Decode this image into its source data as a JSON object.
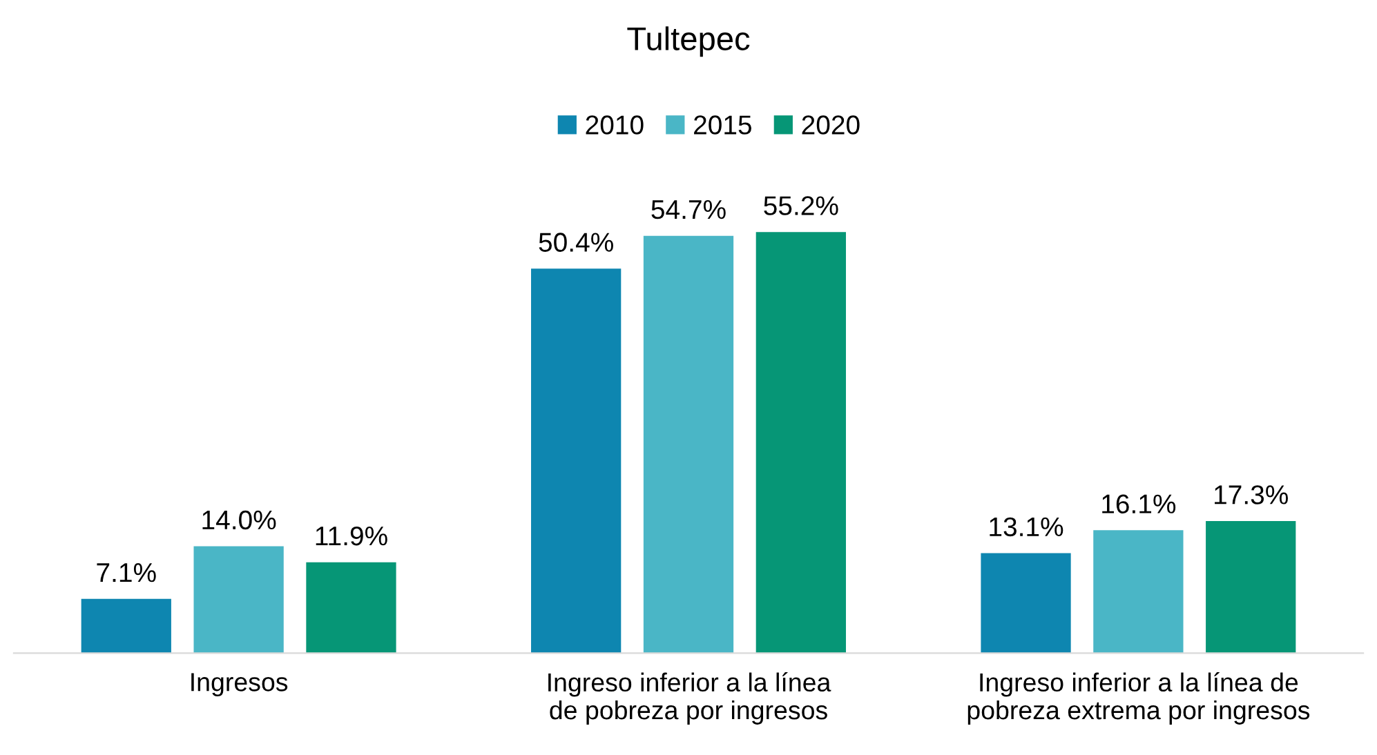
{
  "chart_data": {
    "type": "bar",
    "title": "Tultepec",
    "categories": [
      "Ingresos",
      "Ingreso inferior a la línea de pobreza por ingresos",
      "Ingreso inferior a la línea de pobreza extrema por ingresos"
    ],
    "series": [
      {
        "name": "2010",
        "color": "#0e86b0",
        "values": [
          7.1,
          50.4,
          13.1
        ],
        "value_labels": [
          "7.1%",
          "50.4%",
          "13.1%"
        ]
      },
      {
        "name": "2015",
        "color": "#4ab6c6",
        "values": [
          14.0,
          54.7,
          16.1
        ],
        "value_labels": [
          "14.0%",
          "54.7%",
          "16.1%"
        ]
      },
      {
        "name": "2020",
        "color": "#069676",
        "values": [
          11.9,
          55.2,
          17.3
        ],
        "value_labels": [
          "11.9%",
          "55.2%",
          "17.3%"
        ]
      }
    ],
    "legend": "top",
    "grid": false
  }
}
